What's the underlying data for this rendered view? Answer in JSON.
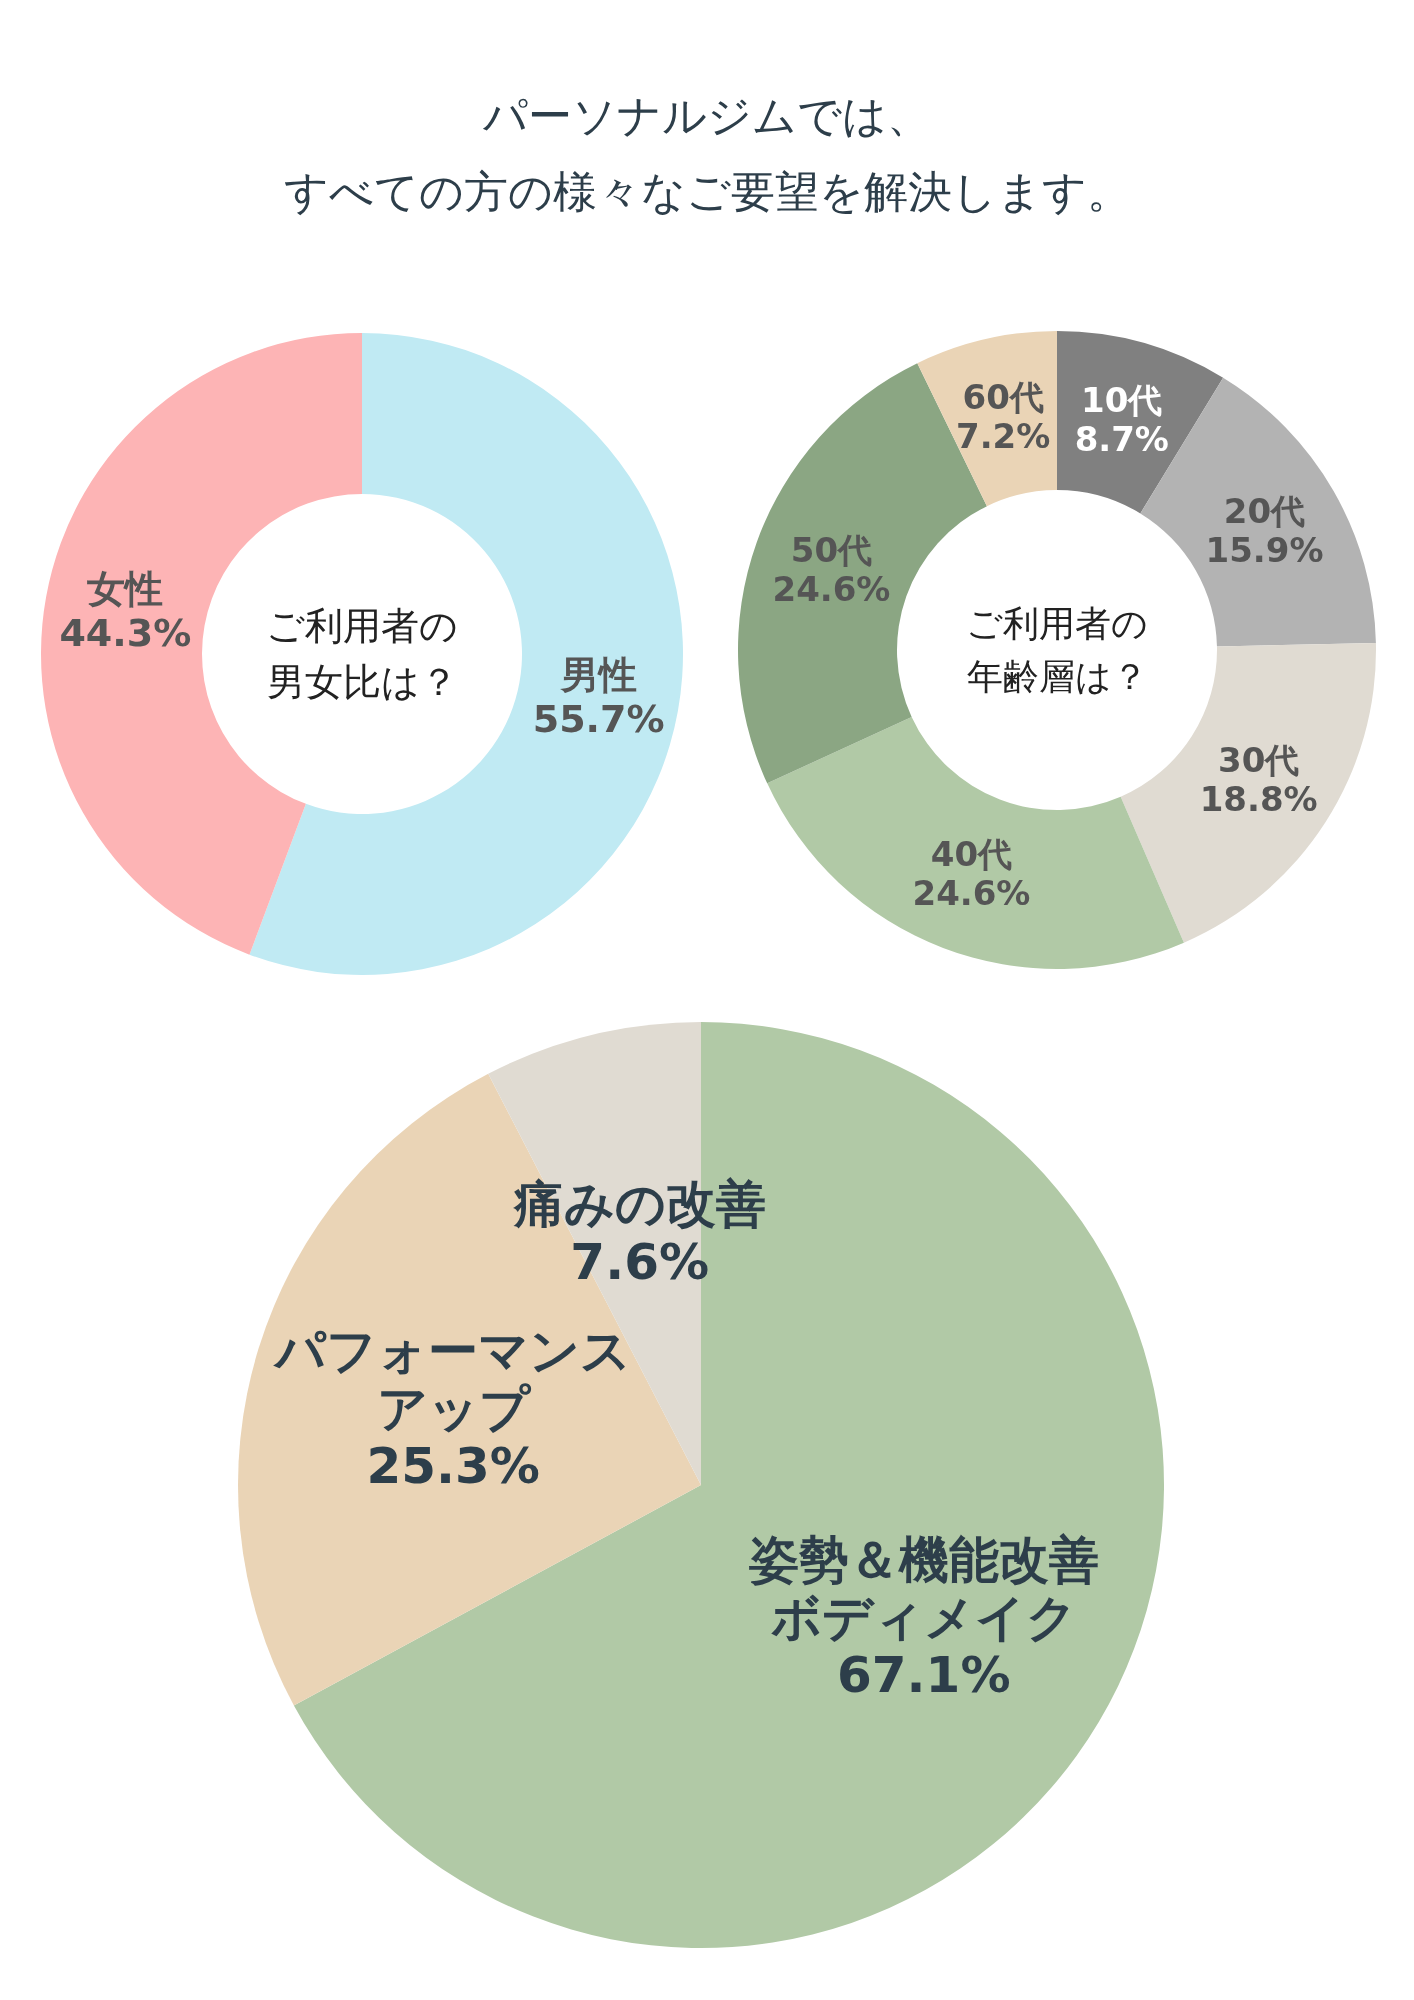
{
  "chart_data": [
    {
      "type": "donut",
      "title": "パーソナルジムでは、すべての方の様々なご要望を解決します。",
      "annotations": [
        "ご利用者の男女比は？"
      ],
      "categories": [
        "男性",
        "女性"
      ],
      "values": [
        55.7,
        44.3
      ],
      "value_labels": [
        "55.7%",
        "44.3%"
      ],
      "colors": [
        "#c0eaf3",
        "#fdb4b5"
      ]
    },
    {
      "type": "donut",
      "annotations": [
        "ご利用者の年齢層は？"
      ],
      "categories": [
        "10代",
        "20代",
        "30代",
        "40代",
        "50代",
        "60代"
      ],
      "values": [
        8.7,
        15.9,
        18.8,
        24.6,
        24.6,
        7.2
      ],
      "value_labels": [
        "8.7%",
        "15.9%",
        "18.8%",
        "24.6%",
        "24.6%",
        "7.2%"
      ],
      "colors": [
        "#808080",
        "#b3b3b3",
        "#e0dbd2",
        "#b1c9a6",
        "#8ba683",
        "#ead4b6"
      ]
    },
    {
      "type": "pie",
      "categories": [
        "姿勢＆機能改善ボディメイク",
        "パフォーマンスアップ",
        "痛みの改善"
      ],
      "values": [
        67.1,
        25.3,
        7.6
      ],
      "value_labels": [
        "67.1%",
        "25.3%",
        "7.6%"
      ],
      "colors": [
        "#b1c9a6",
        "#ead4b6",
        "#e0dbd2"
      ]
    }
  ]
}
